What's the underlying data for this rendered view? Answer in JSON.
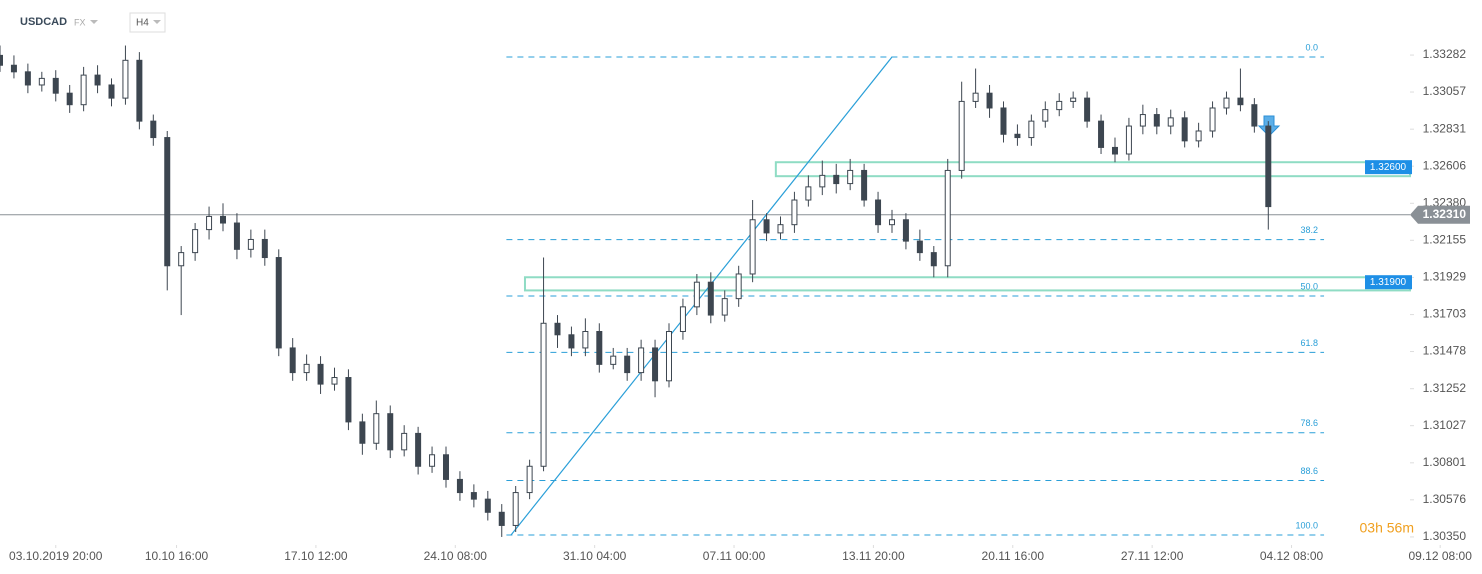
{
  "chart_data": {
    "type": "candlestick",
    "title": "USDCAD",
    "market": "FX",
    "timeframe": "H4",
    "timer": "03h 56m",
    "color": "#3d4650",
    "xlim": [
      0,
      319
    ],
    "ylim": [
      1.30301,
      1.33617
    ],
    "yticks": [
      1.33282,
      1.33057,
      1.32831,
      1.32606,
      {
        "value": 1.3238,
        "label": "1.32380"
      },
      1.32155,
      1.31929,
      1.31703,
      1.31478,
      1.31252,
      1.31027,
      1.30801,
      1.30576,
      {
        "value": 1.3035,
        "label": "1.30350"
      }
    ],
    "xticks": [
      {
        "value": 12,
        "label": "03.10.2019  20:00"
      },
      {
        "value": 38,
        "label": "10.10  16:00"
      },
      {
        "value": 68,
        "label": "17.10  12:00"
      },
      {
        "value": 98,
        "label": "24.10  08:00"
      },
      {
        "value": 128,
        "label": "31.10  04:00"
      },
      {
        "value": 158,
        "label": "07.11  00:00"
      },
      {
        "value": 188,
        "label": "13.11  20:00"
      },
      {
        "value": 218,
        "label": "20.11  16:00"
      },
      {
        "value": 248,
        "label": "27.11  12:00"
      },
      {
        "value": 278,
        "label": "04.12  08:00"
      },
      {
        "value": 310,
        "label": "09.12  08:00"
      }
    ],
    "x": [
      0,
      3,
      6,
      9,
      12,
      15,
      18,
      21,
      24,
      27,
      30,
      33,
      36,
      39,
      42,
      45,
      48,
      51,
      54,
      57,
      60,
      63,
      66,
      69,
      72,
      75,
      78,
      81,
      84,
      87,
      90,
      93,
      96,
      99,
      102,
      105,
      108,
      111,
      114,
      117,
      120,
      123,
      126,
      129,
      132,
      135,
      138,
      141,
      144,
      147,
      150,
      153,
      156,
      159,
      162,
      165,
      168,
      171,
      174,
      177,
      180,
      183,
      186,
      189,
      192,
      195,
      198,
      201,
      204,
      207,
      210,
      213,
      216,
      219,
      222,
      225,
      228,
      231,
      234,
      237,
      240,
      243,
      246,
      249,
      252,
      255,
      258,
      261,
      264,
      267,
      270,
      273
    ],
    "open": [
      1.3328,
      1.3322,
      1.3318,
      1.331,
      1.3314,
      1.3305,
      1.3298,
      1.3316,
      1.331,
      1.3302,
      1.3325,
      1.3288,
      1.3278,
      1.32,
      1.3208,
      1.3222,
      1.323,
      1.3226,
      1.321,
      1.3216,
      1.3205,
      1.315,
      1.3135,
      1.314,
      1.3128,
      1.3132,
      1.3105,
      1.3092,
      1.311,
      1.3088,
      1.3098,
      1.3078,
      1.3085,
      1.307,
      1.3062,
      1.3058,
      1.305,
      1.3042,
      1.3062,
      1.3078,
      1.3165,
      1.3158,
      1.315,
      1.316,
      1.314,
      1.3145,
      1.3135,
      1.315,
      1.313,
      1.316,
      1.3175,
      1.319,
      1.317,
      1.318,
      1.3195,
      1.3228,
      1.322,
      1.3225,
      1.324,
      1.3248,
      1.3255,
      1.325,
      1.3258,
      1.324,
      1.3225,
      1.3228,
      1.3215,
      1.3208,
      1.32,
      1.3258,
      1.33,
      1.3305,
      1.3296,
      1.328,
      1.3278,
      1.3288,
      1.3295,
      1.33,
      1.3302,
      1.3288,
      1.3272,
      1.3268,
      1.3285,
      1.3292,
      1.3285,
      1.329,
      1.3276,
      1.3282,
      1.3296,
      1.3302,
      1.3298,
      1.3285
    ],
    "high": [
      1.3334,
      1.3328,
      1.3323,
      1.3318,
      1.3319,
      1.331,
      1.3321,
      1.3322,
      1.3314,
      1.3334,
      1.333,
      1.3292,
      1.3282,
      1.3212,
      1.3226,
      1.3236,
      1.3238,
      1.3232,
      1.3222,
      1.3222,
      1.321,
      1.3156,
      1.3146,
      1.3145,
      1.3138,
      1.3137,
      1.311,
      1.3118,
      1.3115,
      1.3103,
      1.3102,
      1.309,
      1.309,
      1.3075,
      1.3067,
      1.3063,
      1.3055,
      1.3066,
      1.3082,
      1.3205,
      1.317,
      1.3163,
      1.3168,
      1.3165,
      1.315,
      1.315,
      1.3155,
      1.3155,
      1.3165,
      1.318,
      1.3195,
      1.3196,
      1.3185,
      1.32,
      1.324,
      1.3232,
      1.323,
      1.3245,
      1.3255,
      1.3264,
      1.3262,
      1.3265,
      1.3262,
      1.3245,
      1.3234,
      1.3232,
      1.3222,
      1.3212,
      1.3265,
      1.3312,
      1.332,
      1.331,
      1.33,
      1.3286,
      1.3292,
      1.33,
      1.3305,
      1.3306,
      1.3306,
      1.3292,
      1.3278,
      1.329,
      1.3298,
      1.3296,
      1.3295,
      1.3294,
      1.3287,
      1.33,
      1.3306,
      1.332,
      1.3302,
      1.3288
    ],
    "low": [
      1.3318,
      1.3314,
      1.3305,
      1.3306,
      1.33,
      1.3293,
      1.3294,
      1.3305,
      1.3297,
      1.3298,
      1.3283,
      1.3273,
      1.3185,
      1.317,
      1.3203,
      1.3216,
      1.3221,
      1.3204,
      1.3205,
      1.32,
      1.3145,
      1.313,
      1.313,
      1.3122,
      1.3124,
      1.31,
      1.3085,
      1.3088,
      1.3083,
      1.3084,
      1.3073,
      1.3074,
      1.3065,
      1.3057,
      1.3053,
      1.3045,
      1.3035,
      1.3038,
      1.3058,
      1.3075,
      1.315,
      1.3145,
      1.3145,
      1.3135,
      1.3137,
      1.313,
      1.313,
      1.312,
      1.3126,
      1.3155,
      1.317,
      1.3165,
      1.3166,
      1.3175,
      1.319,
      1.3215,
      1.3216,
      1.322,
      1.3236,
      1.3243,
      1.3244,
      1.3246,
      1.3236,
      1.322,
      1.322,
      1.321,
      1.3203,
      1.3193,
      1.3193,
      1.3253,
      1.3296,
      1.329,
      1.3275,
      1.3273,
      1.3273,
      1.3284,
      1.3291,
      1.3296,
      1.3284,
      1.3268,
      1.3263,
      1.3264,
      1.328,
      1.328,
      1.328,
      1.3272,
      1.3272,
      1.3278,
      1.3292,
      1.3294,
      1.3281,
      1.3222
    ],
    "close": [
      1.3322,
      1.3318,
      1.331,
      1.3314,
      1.3305,
      1.3298,
      1.3316,
      1.331,
      1.3302,
      1.3325,
      1.3288,
      1.3278,
      1.32,
      1.3208,
      1.3222,
      1.323,
      1.3226,
      1.321,
      1.3216,
      1.3205,
      1.315,
      1.3135,
      1.314,
      1.3128,
      1.3132,
      1.3105,
      1.3092,
      1.311,
      1.3088,
      1.3098,
      1.3078,
      1.3085,
      1.307,
      1.3062,
      1.3058,
      1.305,
      1.3042,
      1.3062,
      1.3078,
      1.3165,
      1.3158,
      1.315,
      1.316,
      1.314,
      1.3145,
      1.3135,
      1.315,
      1.313,
      1.316,
      1.3175,
      1.319,
      1.317,
      1.318,
      1.3195,
      1.3228,
      1.322,
      1.3225,
      1.324,
      1.3248,
      1.3255,
      1.325,
      1.3258,
      1.324,
      1.3225,
      1.3228,
      1.3215,
      1.3208,
      1.32,
      1.3258,
      1.33,
      1.3305,
      1.3296,
      1.328,
      1.3278,
      1.3288,
      1.3295,
      1.33,
      1.3302,
      1.3288,
      1.3272,
      1.3268,
      1.3285,
      1.3292,
      1.3285,
      1.329,
      1.3276,
      1.3282,
      1.3296,
      1.3302,
      1.3298,
      1.3285,
      1.3236
    ],
    "current_price": {
      "value": 1.3231,
      "label": "1.32310"
    },
    "trendline": {
      "x": [
        110,
        192
      ],
      "y": [
        1.30362,
        1.3327
      ]
    },
    "fibonacci": {
      "x_start": 109,
      "x_end": 285,
      "high": 1.3327,
      "low": 1.30362,
      "levels": [
        {
          "value": 0,
          "label": "0.0"
        },
        38.2,
        {
          "value": 50,
          "label": "50.0"
        },
        61.8,
        78.6,
        88.6,
        {
          "value": 100,
          "label": "100.0"
        }
      ]
    },
    "zones": [
      {
        "value": 1.326,
        "label": "1.32600",
        "top": 1.3263,
        "bottom": 1.32545,
        "x_start": 167
      },
      {
        "value": 1.319,
        "label": "1.31900",
        "top": 1.3193,
        "bottom": 1.3185,
        "x_start": 113
      }
    ]
  }
}
